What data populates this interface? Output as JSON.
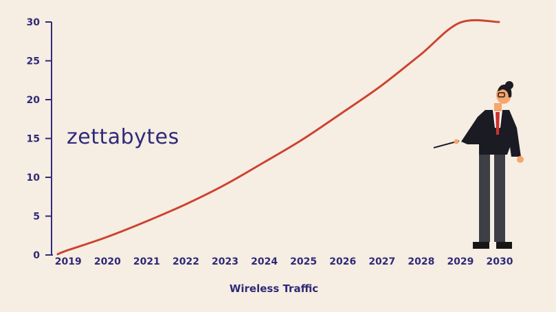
{
  "chart_data": {
    "type": "line",
    "title": "",
    "xlabel": "Wireless Traffic",
    "ylabel": "zettabytes",
    "x": [
      "2019",
      "2020",
      "2021",
      "2022",
      "2023",
      "2024",
      "2025",
      "2026",
      "2027",
      "2028",
      "2029",
      "2030"
    ],
    "x_range": [
      2018.75,
      2030
    ],
    "ylim": [
      0,
      30
    ],
    "yticks": [
      0,
      5,
      10,
      15,
      20,
      25,
      30
    ],
    "grid": false,
    "series": [
      {
        "x": [
          2018.75,
          2019,
          2020,
          2021,
          2022,
          2023,
          2024,
          2025,
          2026,
          2027,
          2028,
          2029,
          2030
        ],
        "values": [
          0.1,
          0.6,
          2.3,
          4.3,
          6.5,
          9.0,
          11.9,
          14.9,
          18.3,
          21.8,
          25.8,
          29.9,
          30
        ]
      }
    ],
    "colors": {
      "axis": "#2f2a78",
      "line": "#cc4330",
      "background": "#f6ede3"
    }
  },
  "labels": {
    "unit": "zettabytes",
    "x_title": "Wireless Traffic"
  },
  "figure": {
    "icon": "presenter-with-pointer-icon"
  }
}
